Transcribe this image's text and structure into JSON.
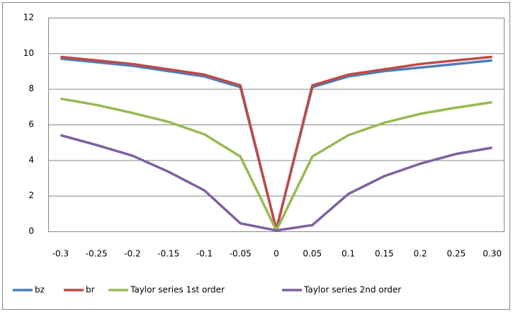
{
  "chart_data": {
    "type": "line",
    "categories": [
      "-0.3",
      "-0.25",
      "-0.2",
      "-0.15",
      "-0.1",
      "-0.05",
      "0",
      "0.05",
      "0.1",
      "0.15",
      "0.2",
      "0.25",
      "0.30"
    ],
    "series": [
      {
        "name": "bz",
        "color": "#4a7ebb",
        "values": [
          9.7,
          9.5,
          9.3,
          9.0,
          8.7,
          8.1,
          0.1,
          8.1,
          8.7,
          9.0,
          9.2,
          9.4,
          9.6
        ]
      },
      {
        "name": "br",
        "color": "#be4b48",
        "values": [
          9.8,
          9.6,
          9.4,
          9.1,
          8.8,
          8.2,
          0.1,
          8.2,
          8.8,
          9.1,
          9.4,
          9.6,
          9.8
        ]
      },
      {
        "name": "Taylor series 1st order",
        "color": "#98b954",
        "values": [
          7.45,
          7.1,
          6.65,
          6.15,
          5.45,
          4.2,
          0.05,
          4.2,
          5.4,
          6.1,
          6.6,
          6.95,
          7.25
        ]
      },
      {
        "name": "Taylor series 2nd order",
        "color": "#7d60a0",
        "values": [
          5.4,
          4.85,
          4.25,
          3.35,
          2.3,
          0.45,
          0.05,
          0.35,
          2.1,
          3.1,
          3.8,
          4.35,
          4.7
        ]
      }
    ],
    "ylim": [
      0,
      12
    ],
    "yticks": [
      0,
      2,
      4,
      6,
      8,
      10,
      12
    ],
    "grid": true,
    "legend": "bottom"
  }
}
